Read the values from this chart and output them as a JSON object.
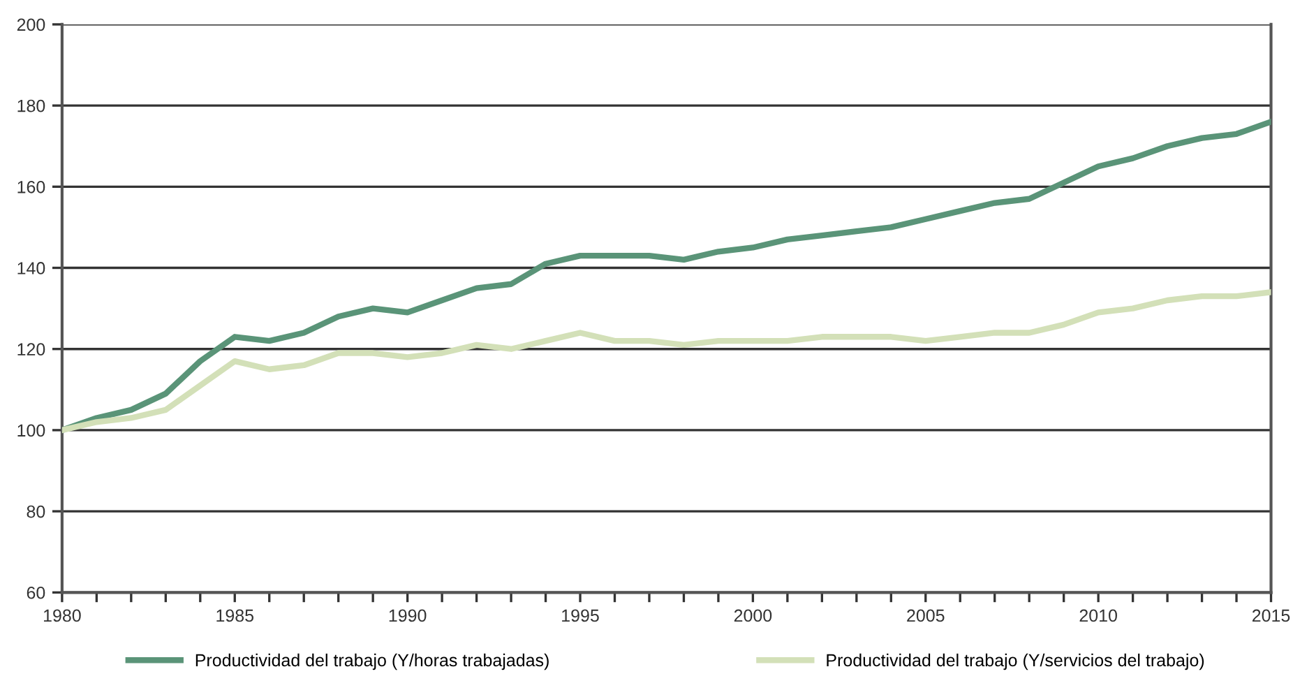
{
  "chart_data": {
    "type": "line",
    "x": [
      1980,
      1981,
      1982,
      1983,
      1984,
      1985,
      1986,
      1987,
      1988,
      1989,
      1990,
      1991,
      1992,
      1993,
      1994,
      1995,
      1996,
      1997,
      1998,
      1999,
      2000,
      2001,
      2002,
      2003,
      2004,
      2005,
      2006,
      2007,
      2008,
      2009,
      2010,
      2011,
      2012,
      2013,
      2014,
      2015
    ],
    "series": [
      {
        "name": "Productividad del trabajo (Y/horas trabajadas)",
        "color": "#5a9478",
        "values": [
          100,
          103,
          105,
          109,
          117,
          123,
          122,
          124,
          128,
          130,
          129,
          132,
          135,
          136,
          141,
          143,
          143,
          143,
          142,
          144,
          145,
          147,
          148,
          149,
          150,
          152,
          154,
          156,
          157,
          161,
          165,
          167,
          170,
          172,
          173,
          176
        ]
      },
      {
        "name": "Productividad del trabajo (Y/servicios del trabajo)",
        "color": "#d3e0b8",
        "values": [
          100,
          102,
          103,
          105,
          111,
          117,
          115,
          116,
          119,
          119,
          118,
          119,
          121,
          120,
          122,
          124,
          122,
          122,
          121,
          122,
          122,
          122,
          123,
          123,
          123,
          122,
          123,
          124,
          124,
          126,
          129,
          130,
          132,
          133,
          133,
          134
        ]
      }
    ],
    "xlim": [
      1980,
      2015
    ],
    "ylim": [
      60,
      200
    ],
    "xticks": [
      1980,
      {
        "value": 1981,
        "label": null
      },
      {
        "value": 1982,
        "label": null
      },
      {
        "value": 1983,
        "label": null
      },
      {
        "value": 1984,
        "label": null
      },
      1985,
      {
        "value": 1986,
        "label": null
      },
      {
        "value": 1987,
        "label": null
      },
      {
        "value": 1988,
        "label": null
      },
      {
        "value": 1989,
        "label": null
      },
      1990,
      {
        "value": 1991,
        "label": null
      },
      {
        "value": 1992,
        "label": null
      },
      {
        "value": 1993,
        "label": null
      },
      {
        "value": 1994,
        "label": null
      },
      1995,
      {
        "value": 1996,
        "label": null
      },
      {
        "value": 1997,
        "label": null
      },
      {
        "value": 1998,
        "label": null
      },
      {
        "value": 1999,
        "label": null
      },
      2000,
      {
        "value": 2001,
        "label": null
      },
      {
        "value": 2002,
        "label": null
      },
      {
        "value": 2003,
        "label": null
      },
      {
        "value": 2004,
        "label": null
      },
      2005,
      {
        "value": 2006,
        "label": null
      },
      {
        "value": 2007,
        "label": null
      },
      {
        "value": 2008,
        "label": null
      },
      {
        "value": 2009,
        "label": null
      },
      2010,
      {
        "value": 2011,
        "label": null
      },
      {
        "value": 2012,
        "label": null
      },
      {
        "value": 2013,
        "label": null
      },
      {
        "value": 2014,
        "label": null
      },
      2015
    ],
    "yticks": [
      60,
      80,
      100,
      120,
      140,
      160,
      180,
      200
    ],
    "grid": "y",
    "legend": "bottom",
    "marker": "none",
    "line_style": "solid"
  }
}
